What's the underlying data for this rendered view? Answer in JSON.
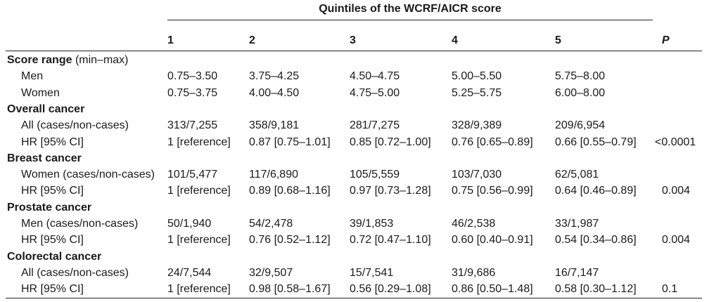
{
  "table": {
    "spanning_header": "Quintiles of the WCRF/AICR score",
    "columns": [
      "1",
      "2",
      "3",
      "4",
      "5",
      "P"
    ],
    "rows": [
      {
        "label": "Score range",
        "note": "(min–max)",
        "section": true,
        "cells": [
          "",
          "",
          "",
          "",
          "",
          ""
        ]
      },
      {
        "label": "Men",
        "section": false,
        "cells": [
          "0.75–3.50",
          "3.75–4.25",
          "4.50–4.75",
          "5.00–5.50",
          "5.75–8.00",
          ""
        ]
      },
      {
        "label": "Women",
        "section": false,
        "cells": [
          "0.75–3.75",
          "4.00–4.50",
          "4.75–5.00",
          "5.25–5.75",
          "6.00–8.00",
          ""
        ]
      },
      {
        "label": "Overall cancer",
        "note": "",
        "section": true,
        "cells": [
          "",
          "",
          "",
          "",
          "",
          ""
        ]
      },
      {
        "label": "All (cases/non-cases)",
        "section": false,
        "cells": [
          "313/7,255",
          "358/9,181",
          "281/7,275",
          "328/9,389",
          "209/6,954",
          ""
        ]
      },
      {
        "label": "HR [95% CI]",
        "section": false,
        "cells": [
          "1 [reference]",
          "0.87 [0.75–1.01]",
          "0.85 [0.72–1.00]",
          "0.76 [0.65–0.89]",
          "0.66 [0.55–0.79]",
          "<0.0001"
        ]
      },
      {
        "label": "Breast cancer",
        "note": "",
        "section": true,
        "cells": [
          "",
          "",
          "",
          "",
          "",
          ""
        ]
      },
      {
        "label": "Women (cases/non-cases)",
        "section": false,
        "cells": [
          "101/5,477",
          "117/6,890",
          "105/5,559",
          "103/7,030",
          "62/5,081",
          ""
        ]
      },
      {
        "label": "HR [95% CI]",
        "section": false,
        "cells": [
          "1 [reference]",
          "0.89 [0.68–1.16]",
          "0.97 [0.73–1.28]",
          "0.75 [0.56–0.99]",
          "0.64 [0.46–0.89]",
          "0.004"
        ]
      },
      {
        "label": "Prostate cancer",
        "note": "",
        "section": true,
        "cells": [
          "",
          "",
          "",
          "",
          "",
          ""
        ]
      },
      {
        "label": "Men (cases/non-cases)",
        "section": false,
        "cells": [
          "50/1,940",
          "54/2,478",
          "39/1,853",
          "46/2,538",
          "33/1,987",
          ""
        ]
      },
      {
        "label": "HR [95% CI]",
        "section": false,
        "cells": [
          "1 [reference]",
          "0.76 [0.52–1.12]",
          "0.72 [0.47–1.10]",
          "0.60 [0.40–0.91]",
          "0.54 [0.34–0.86]",
          "0.004"
        ]
      },
      {
        "label": "Colorectal cancer",
        "note": "",
        "section": true,
        "cells": [
          "",
          "",
          "",
          "",
          "",
          ""
        ]
      },
      {
        "label": "All (cases/non-cases)",
        "section": false,
        "cells": [
          "24/7,544",
          "32/9,507",
          "15/7,541",
          "31/9,686",
          "16/7,147",
          ""
        ]
      },
      {
        "label": "HR [95% CI]",
        "section": false,
        "cells": [
          "1 [reference]",
          "0.98 [0.58–1.67]",
          "0.56 [0.29–1.08]",
          "0.86 [0.50–1.48]",
          "0.58 [0.30–1.12]",
          "0.1"
        ]
      }
    ]
  }
}
